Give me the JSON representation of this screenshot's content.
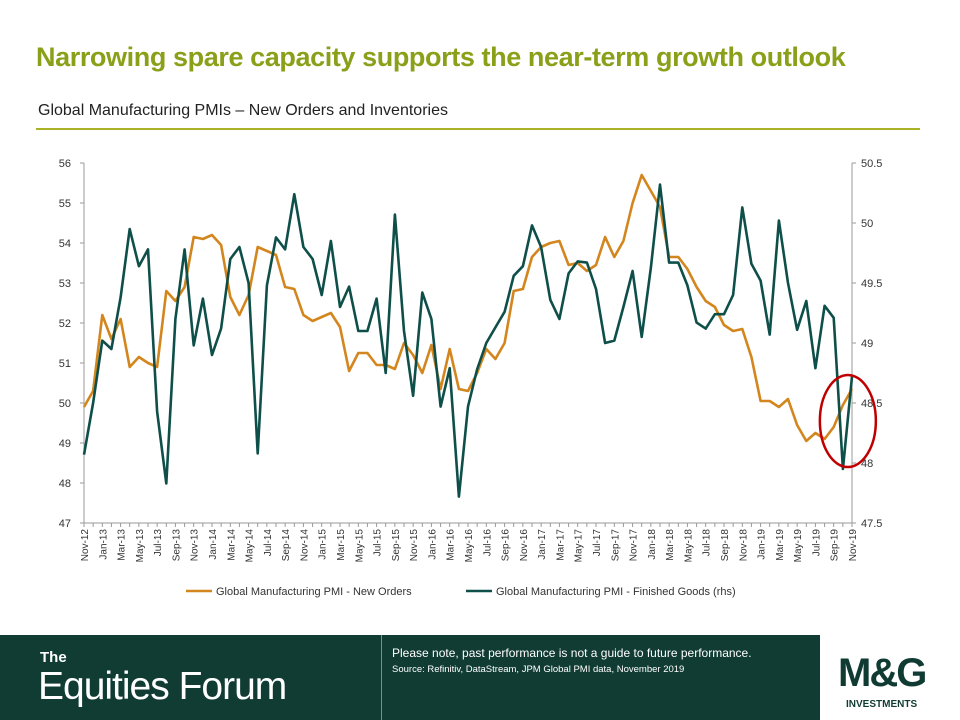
{
  "page": {
    "title": "Narrowing spare capacity supports the near-term growth outlook",
    "subtitle": "Global Manufacturing PMIs – New Orders and Inventories"
  },
  "colors": {
    "new_orders": "#d4861e",
    "finished_goods": "#0f4f4a",
    "title_green": "#8aa019",
    "highlight_circle": "#c00000",
    "footer_bg": "#103c33"
  },
  "chart_data": {
    "type": "line",
    "x": [
      "Nov-12",
      "Dec-12",
      "Jan-13",
      "Feb-13",
      "Mar-13",
      "Apr-13",
      "May-13",
      "Jun-13",
      "Jul-13",
      "Aug-13",
      "Sep-13",
      "Oct-13",
      "Nov-13",
      "Dec-13",
      "Jan-14",
      "Feb-14",
      "Mar-14",
      "Apr-14",
      "May-14",
      "Jun-14",
      "Jul-14",
      "Aug-14",
      "Sep-14",
      "Oct-14",
      "Nov-14",
      "Dec-14",
      "Jan-15",
      "Feb-15",
      "Mar-15",
      "Apr-15",
      "May-15",
      "Jun-15",
      "Jul-15",
      "Aug-15",
      "Sep-15",
      "Oct-15",
      "Nov-15",
      "Dec-15",
      "Jan-16",
      "Feb-16",
      "Mar-16",
      "Apr-16",
      "May-16",
      "Jun-16",
      "Jul-16",
      "Aug-16",
      "Sep-16",
      "Oct-16",
      "Nov-16",
      "Dec-16",
      "Jan-17",
      "Feb-17",
      "Mar-17",
      "Apr-17",
      "May-17",
      "Jun-17",
      "Jul-17",
      "Aug-17",
      "Sep-17",
      "Oct-17",
      "Nov-17",
      "Dec-17",
      "Jan-18",
      "Feb-18",
      "Mar-18",
      "Apr-18",
      "May-18",
      "Jun-18",
      "Jul-18",
      "Aug-18",
      "Sep-18",
      "Oct-18",
      "Nov-18",
      "Dec-18",
      "Jan-19",
      "Feb-19",
      "Mar-19",
      "Apr-19",
      "May-19",
      "Jun-19",
      "Jul-19",
      "Aug-19",
      "Sep-19",
      "Oct-19",
      "Nov-19"
    ],
    "x_tick_labels": [
      "Nov-12",
      "Jan-13",
      "Mar-13",
      "May-13",
      "Jul-13",
      "Sep-13",
      "Nov-13",
      "Jan-14",
      "Mar-14",
      "May-14",
      "Jul-14",
      "Sep-14",
      "Nov-14",
      "Jan-15",
      "Mar-15",
      "May-15",
      "Jul-15",
      "Sep-15",
      "Nov-15",
      "Jan-16",
      "Mar-16",
      "May-16",
      "Jul-16",
      "Sep-16",
      "Nov-16",
      "Jan-17",
      "Mar-17",
      "May-17",
      "Jul-17",
      "Sep-17",
      "Nov-17",
      "Jan-18",
      "Mar-18",
      "May-18",
      "Jul-18",
      "Sep-18",
      "Nov-18",
      "Jan-19",
      "Mar-19",
      "May-19",
      "Jul-19",
      "Sep-19",
      "Nov-19"
    ],
    "series": [
      {
        "name": "Global Manufacturing PMI - New Orders",
        "axis": "left",
        "values": [
          49.9,
          50.3,
          52.2,
          51.6,
          52.1,
          50.9,
          51.15,
          51.0,
          50.9,
          52.8,
          52.55,
          52.9,
          54.15,
          54.1,
          54.2,
          53.95,
          52.65,
          52.2,
          52.7,
          53.9,
          53.8,
          53.7,
          52.9,
          52.85,
          52.2,
          52.05,
          52.15,
          52.25,
          51.9,
          50.8,
          51.25,
          51.25,
          50.95,
          50.95,
          50.85,
          51.5,
          51.2,
          50.75,
          51.45,
          50.35,
          51.35,
          50.35,
          50.3,
          50.75,
          51.35,
          51.1,
          51.5,
          52.8,
          52.85,
          53.65,
          53.9,
          54.0,
          54.05,
          53.45,
          53.5,
          53.3,
          53.45,
          54.15,
          53.65,
          54.05,
          55.0,
          55.7,
          55.3,
          54.9,
          53.65,
          53.65,
          53.35,
          52.9,
          52.55,
          52.4,
          51.95,
          51.8,
          51.85,
          51.15,
          50.05,
          50.05,
          49.9,
          50.1,
          49.45,
          49.05,
          49.25,
          49.1,
          49.4,
          49.95,
          50.35
        ]
      },
      {
        "name": "Global Manufacturing PMI - Finished Goods (rhs)",
        "axis": "right",
        "values": [
          48.07,
          48.5,
          49.02,
          48.95,
          49.38,
          49.95,
          49.64,
          49.78,
          48.43,
          47.83,
          49.2,
          49.78,
          48.98,
          49.37,
          48.9,
          49.12,
          49.7,
          49.8,
          49.5,
          48.08,
          49.48,
          49.88,
          49.78,
          50.24,
          49.8,
          49.7,
          49.4,
          49.85,
          49.3,
          49.47,
          49.1,
          49.1,
          49.37,
          48.75,
          50.07,
          49.1,
          48.56,
          49.42,
          49.2,
          48.47,
          48.79,
          47.72,
          48.47,
          48.78,
          49.0,
          49.13,
          49.26,
          49.56,
          49.64,
          49.98,
          49.8,
          49.36,
          49.2,
          49.58,
          49.68,
          49.67,
          49.45,
          49.0,
          49.02,
          49.3,
          49.6,
          49.05,
          49.63,
          50.32,
          49.67,
          49.67,
          49.48,
          49.17,
          49.12,
          49.24,
          49.24,
          49.4,
          50.13,
          49.66,
          49.52,
          49.07,
          50.02,
          49.5,
          49.11,
          49.35,
          48.79,
          49.31,
          49.21,
          47.95,
          48.72
        ]
      }
    ],
    "ylim_left": [
      47,
      56
    ],
    "ylim_right": [
      47.5,
      50.5
    ],
    "yticks_left": [
      47,
      48,
      49,
      50,
      51,
      52,
      53,
      54,
      55,
      56
    ],
    "yticks_right": [
      "47.5",
      "48",
      "48.5",
      "49",
      "49.5",
      "50",
      "50.5"
    ],
    "grid": false,
    "legend": "bottom-center",
    "annotation": "red ellipse highlighting Sep-19 to Nov-19"
  },
  "footer": {
    "brand_the": "The",
    "brand_name": "Equities Forum",
    "disclaimer": "Please note, past performance  is not a guide to future performance.",
    "source": "Source: Refinitiv, DataStream, JPM Global PMI data, November 2019",
    "logo_mark": "M&G",
    "logo_sub": "INVESTMENTS"
  }
}
